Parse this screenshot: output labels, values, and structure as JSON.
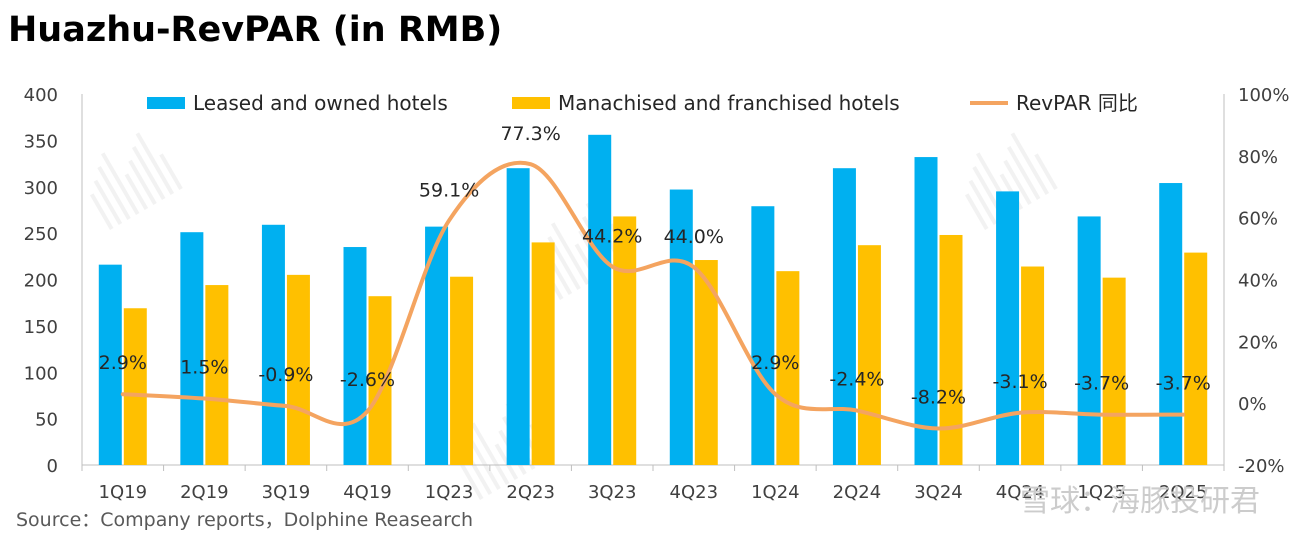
{
  "title": "Huazhu-RevPAR (in RMB)",
  "source": "Source：Company reports，Dolphine Reasearch",
  "watermark": "雪球：海豚投研君",
  "chart_data": {
    "type": "bar",
    "categories": [
      "1Q19",
      "2Q19",
      "3Q19",
      "4Q19",
      "1Q23",
      "2Q23",
      "3Q23",
      "4Q23",
      "1Q24",
      "2Q24",
      "3Q24",
      "4Q24",
      "1Q25",
      "2Q25"
    ],
    "series": [
      {
        "name": "Leased and owned hotels",
        "type": "bar",
        "color": "#00B0F0",
        "axis": "left",
        "values": [
          216,
          251,
          259,
          235,
          257,
          320,
          356,
          297,
          279,
          320,
          332,
          295,
          268,
          304
        ]
      },
      {
        "name": "Manachised and franchised hotels",
        "type": "bar",
        "color": "#FFC000",
        "axis": "left",
        "values": [
          169,
          194,
          205,
          182,
          203,
          240,
          268,
          221,
          209,
          237,
          248,
          214,
          202,
          229
        ]
      },
      {
        "name": "RevPAR 同比",
        "type": "line",
        "color": "#F4A460",
        "axis": "right",
        "values": [
          2.9,
          1.5,
          -0.9,
          -2.6,
          59.1,
          77.3,
          44.2,
          44.0,
          2.9,
          -2.4,
          -8.2,
          -3.1,
          -3.7,
          -3.7
        ],
        "labels": [
          "2.9%",
          "1.5%",
          "-0.9%",
          "-2.6%",
          "59.1%",
          "77.3%",
          "44.2%",
          "44.0%",
          "2.9%",
          "-2.4%",
          "-8.2%",
          "-3.1%",
          "-3.7%",
          "-3.7%"
        ]
      }
    ],
    "y_left": {
      "min": 0,
      "max": 400,
      "step": 50,
      "ticks": [
        "0",
        "50",
        "100",
        "150",
        "200",
        "250",
        "300",
        "350",
        "400"
      ]
    },
    "y_right": {
      "min": -20,
      "max": 100,
      "step": 20,
      "ticks": [
        "-20%",
        "0%",
        "20%",
        "40%",
        "60%",
        "80%",
        "100%"
      ]
    },
    "legend_position": "top",
    "grid": false
  }
}
